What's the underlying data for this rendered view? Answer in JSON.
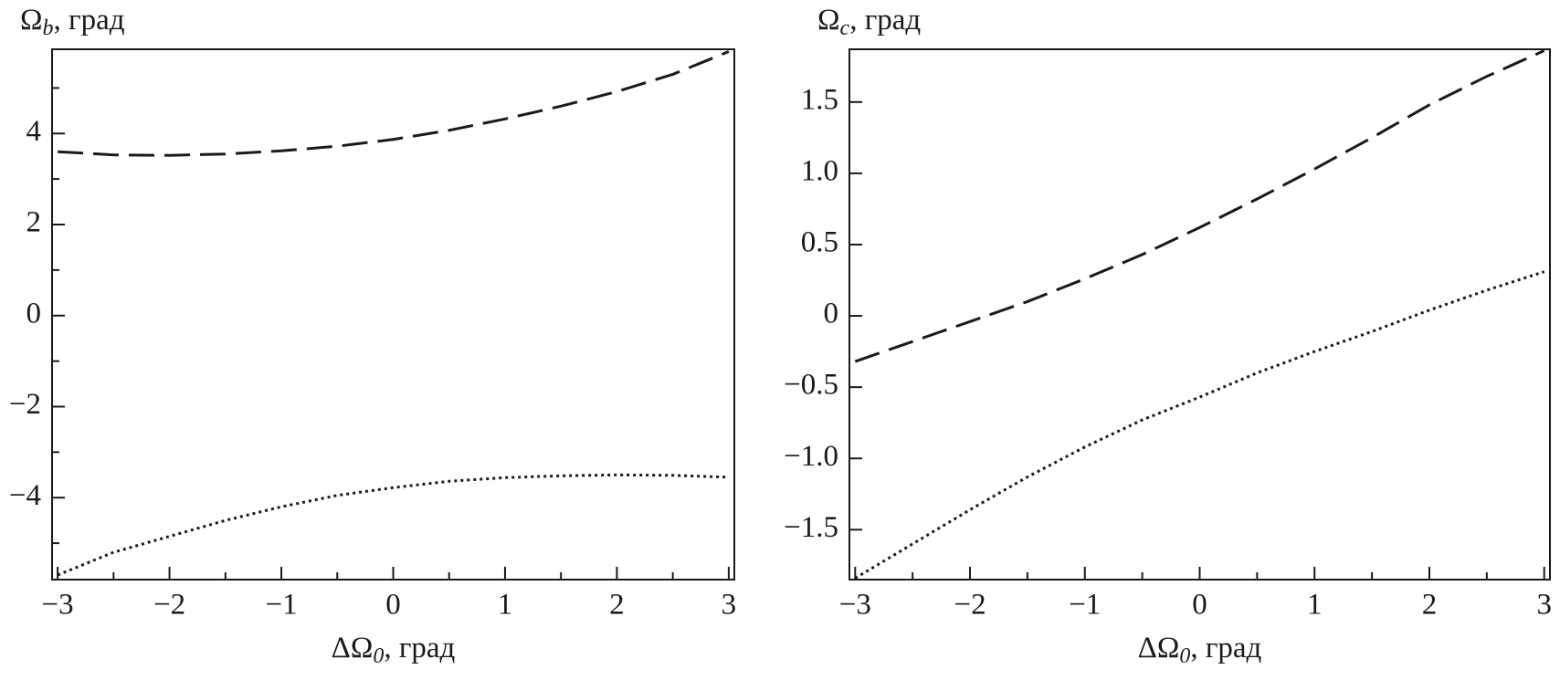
{
  "chart_data": [
    {
      "type": "line",
      "ylabel": {
        "symbol": "Ω",
        "subscript": "b",
        "unit": ", град"
      },
      "xlabel": {
        "symbol": "ΔΩ",
        "subscript": "0",
        "unit": ", град"
      },
      "x": [
        -3,
        -2.5,
        -2,
        -1.5,
        -1,
        -0.5,
        0,
        0.5,
        1,
        1.5,
        2,
        2.5,
        3
      ],
      "series": [
        {
          "color": "#1a1a1a",
          "dash": "dashed",
          "values": [
            3.6,
            3.53,
            3.52,
            3.55,
            3.62,
            3.72,
            3.87,
            4.07,
            4.32,
            4.6,
            4.92,
            5.3,
            5.8
          ]
        },
        {
          "color": "#1a1a1a",
          "dash": "dotted",
          "values": [
            -5.7,
            -5.2,
            -4.85,
            -4.5,
            -4.2,
            -3.95,
            -3.78,
            -3.64,
            -3.56,
            -3.52,
            -3.5,
            -3.51,
            -3.55
          ]
        }
      ],
      "xlim": [
        -3.05,
        3.05
      ],
      "ylim": [
        -5.8,
        5.85
      ],
      "xticks": [
        {
          "value": -3,
          "label": "−3"
        },
        {
          "value": -2,
          "label": "−2"
        },
        {
          "value": -1,
          "label": "−1"
        },
        0,
        1,
        2,
        3
      ],
      "yticks": [
        {
          "value": -4,
          "label": "−4"
        },
        {
          "value": -2,
          "label": "−2"
        },
        0,
        2,
        4
      ],
      "xminorticks": [
        -2.5,
        -1.5,
        -0.5,
        0.5,
        1.5,
        2.5
      ],
      "yminorticks": [
        -5,
        -3,
        -1,
        1,
        3,
        5
      ]
    },
    {
      "type": "line",
      "ylabel": {
        "symbol": "Ω",
        "subscript": "c",
        "unit": ", град"
      },
      "xlabel": {
        "symbol": "ΔΩ",
        "subscript": "0",
        "unit": ", град"
      },
      "x": [
        -3,
        -2.5,
        -2,
        -1.5,
        -1,
        -0.5,
        0,
        0.5,
        1,
        1.5,
        2,
        2.5,
        3
      ],
      "series": [
        {
          "color": "#1a1a1a",
          "dash": "dashed",
          "values": [
            -0.32,
            -0.18,
            -0.04,
            0.1,
            0.26,
            0.43,
            0.62,
            0.82,
            1.03,
            1.25,
            1.48,
            1.68,
            1.86
          ]
        },
        {
          "color": "#1a1a1a",
          "dash": "dotted",
          "values": [
            -1.84,
            -1.6,
            -1.36,
            -1.13,
            -0.92,
            -0.73,
            -0.57,
            -0.4,
            -0.25,
            -0.11,
            0.04,
            0.18,
            0.31
          ]
        }
      ],
      "xlim": [
        -3.05,
        3.05
      ],
      "ylim": [
        -1.85,
        1.87
      ],
      "xticks": [
        {
          "value": -3,
          "label": "−3"
        },
        {
          "value": -2,
          "label": "−2"
        },
        {
          "value": -1,
          "label": "−1"
        },
        0,
        1,
        2,
        3
      ],
      "yticks": [
        {
          "value": -1.5,
          "label": "−1.5"
        },
        {
          "value": -1,
          "label": "−1.0"
        },
        {
          "value": -0.5,
          "label": "−0.5"
        },
        0,
        0.5,
        {
          "value": 1,
          "label": "1.0"
        },
        1.5
      ],
      "xminorticks": [
        -2.5,
        -1.5,
        -0.5,
        0.5,
        1.5,
        2.5
      ],
      "yminorticks": []
    }
  ]
}
